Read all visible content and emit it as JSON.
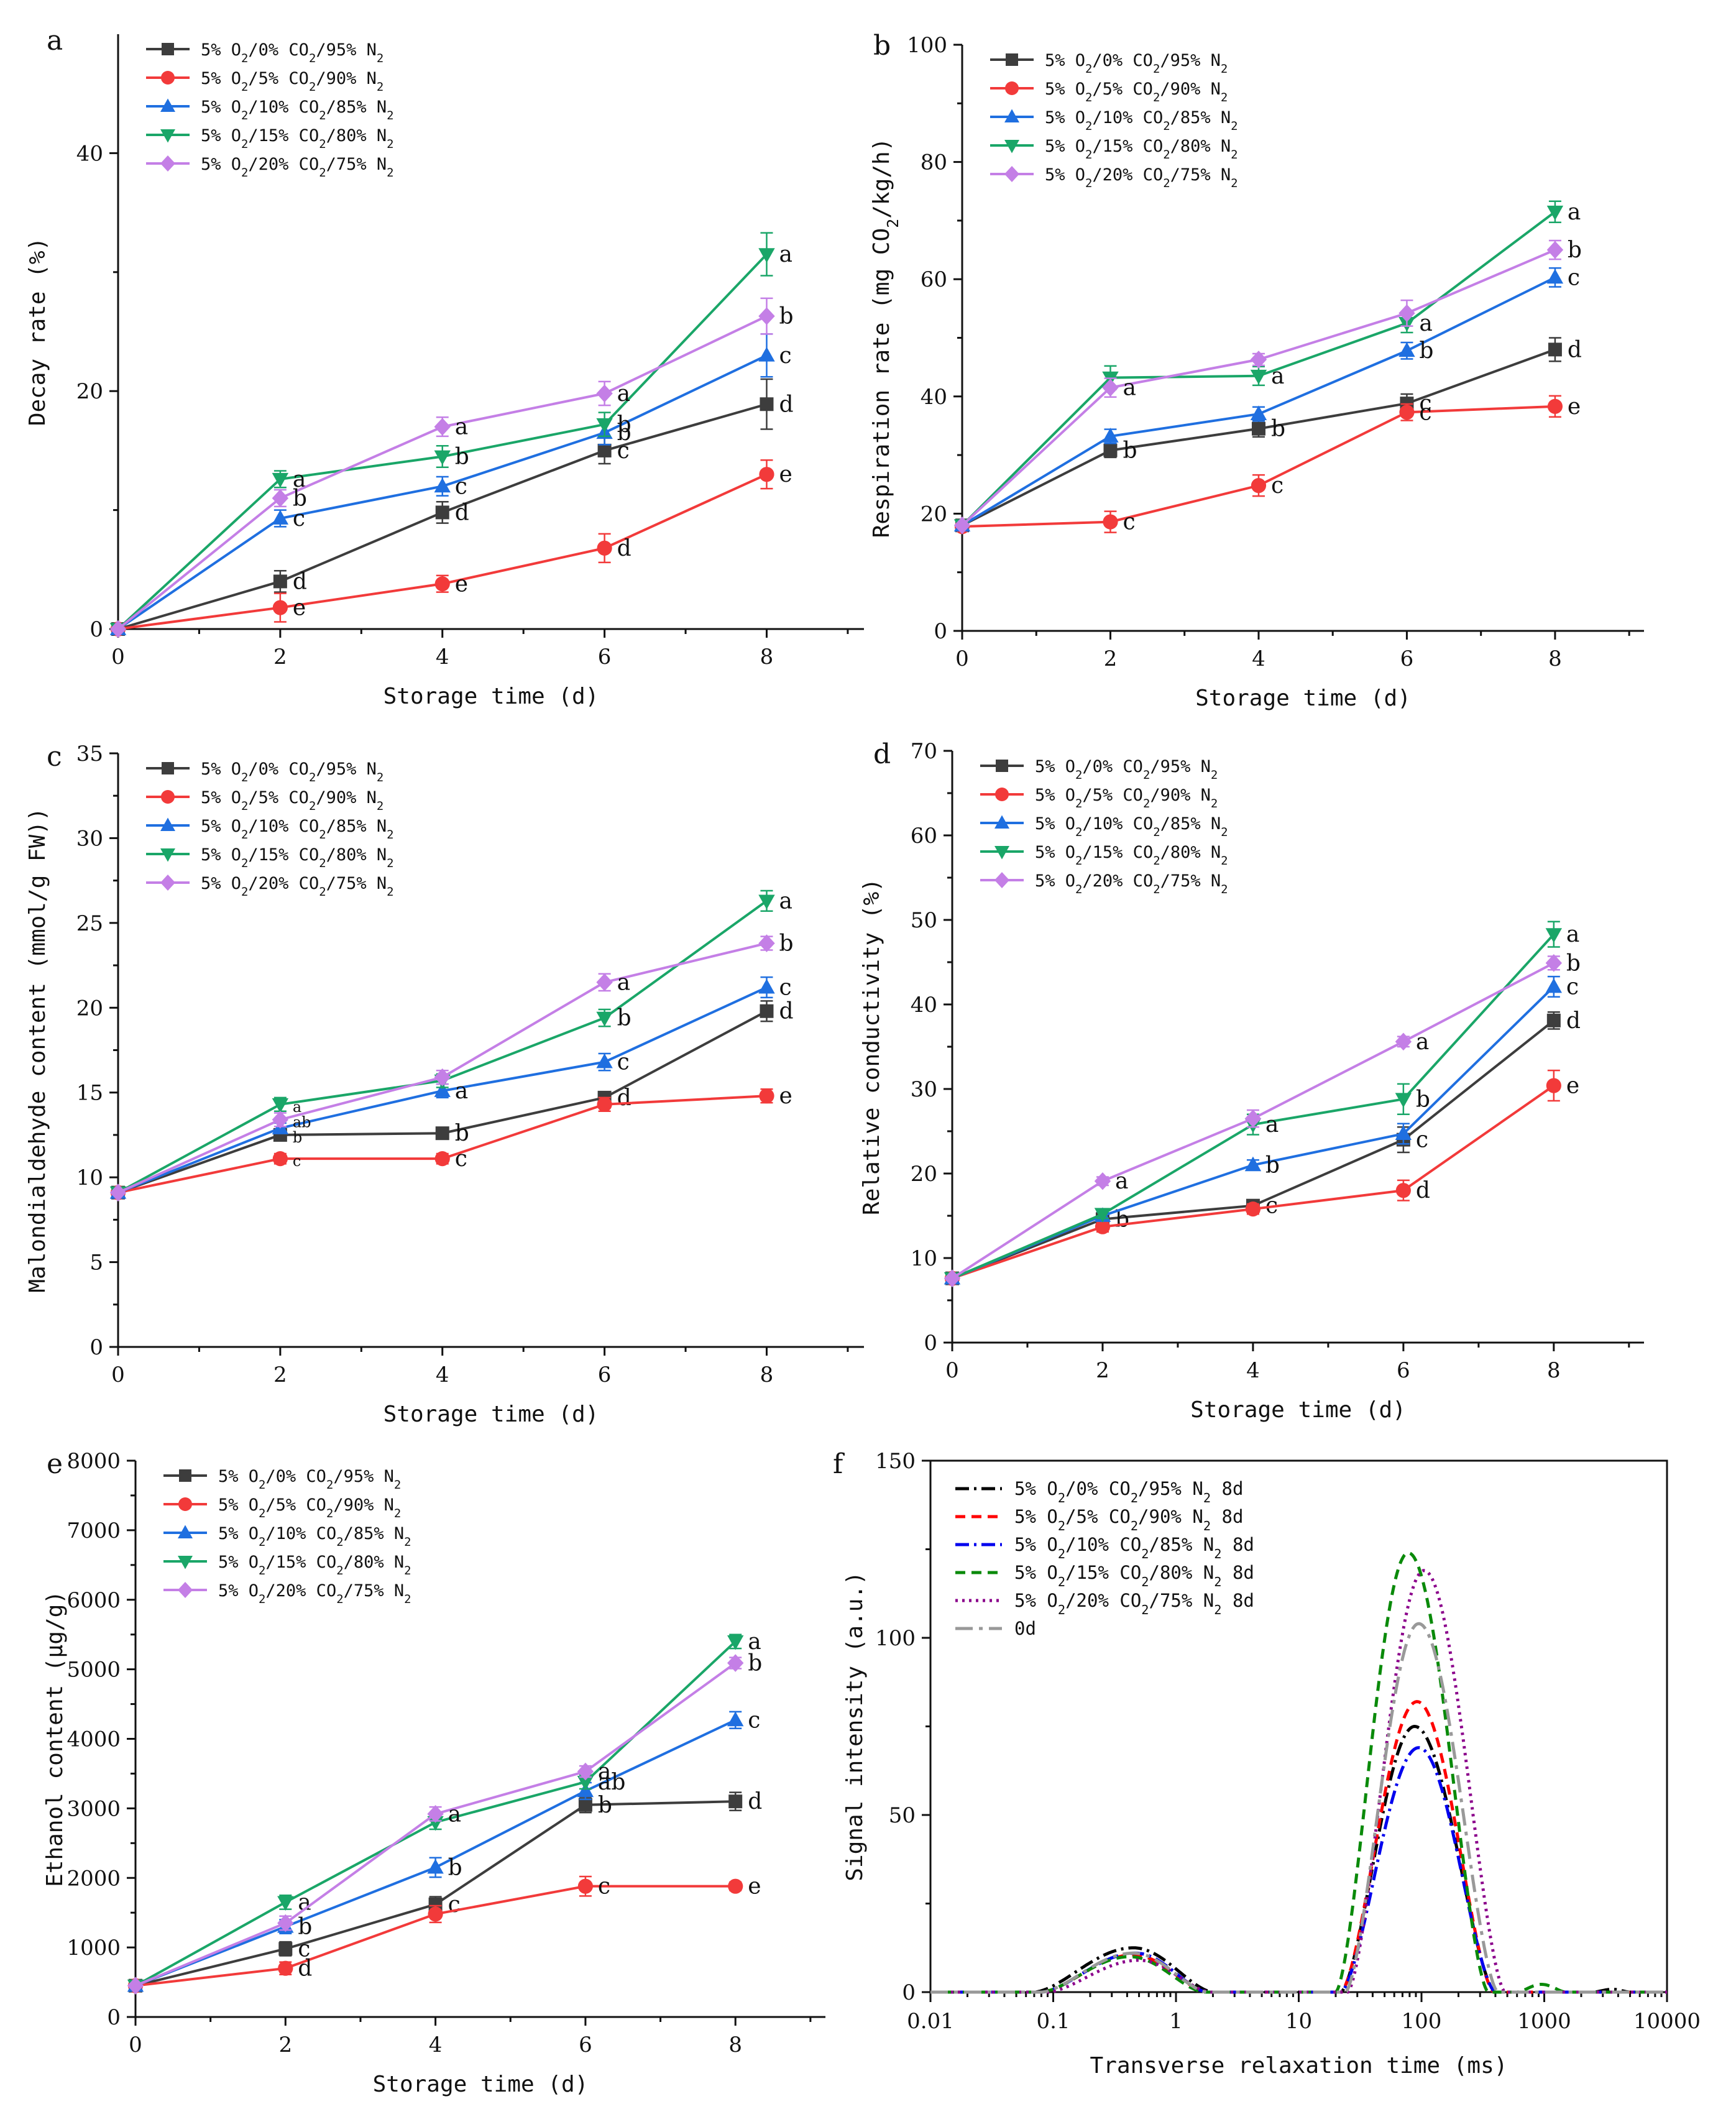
{
  "figure": {
    "panels": [
      "a",
      "b",
      "c",
      "d",
      "e",
      "f"
    ]
  },
  "colors": {
    "gray": "#3d3d3d",
    "red": "#f23a3a",
    "blue": "#1f6fe0",
    "green": "#1aa668",
    "violet": "#c47fe6",
    "f_black": "#000000",
    "f_red": "#ff0000",
    "f_blue": "#0000ee",
    "f_green": "#0a8a0a",
    "f_purple": "#8b008b",
    "f_gray": "#999999"
  },
  "chart_data": [
    {
      "id": "a",
      "type": "line",
      "xlabel": "Storage time (d)",
      "ylabel": "Decay rate (%)",
      "xlim": [
        0,
        9.2
      ],
      "ylim": [
        0,
        50
      ],
      "xticks": [
        0,
        2,
        4,
        6,
        8
      ],
      "yticks": [
        0,
        20,
        40
      ],
      "x": [
        0,
        2,
        4,
        6,
        8
      ],
      "series": [
        {
          "name": "5% O2/0% CO2/95% N2",
          "color": "gray",
          "marker": "square",
          "values": [
            0,
            4.0,
            9.8,
            15.0,
            18.9
          ],
          "err": [
            0,
            0.9,
            0.9,
            1.1,
            2.1
          ],
          "letters": [
            "",
            "d",
            "d",
            "c",
            "d"
          ]
        },
        {
          "name": "5% O2/5% CO2/90% N2",
          "color": "red",
          "marker": "circle",
          "values": [
            0,
            1.8,
            3.8,
            6.8,
            13.0
          ],
          "err": [
            0,
            1.2,
            0.7,
            1.2,
            1.2
          ],
          "letters": [
            "",
            "e",
            "e",
            "d",
            "e"
          ]
        },
        {
          "name": "5% O2/10% CO2/85% N2",
          "color": "blue",
          "marker": "triangle-up",
          "values": [
            0,
            9.3,
            12.0,
            16.5,
            23.0
          ],
          "err": [
            0,
            0.7,
            0.8,
            1.0,
            1.8
          ],
          "letters": [
            "",
            "c",
            "c",
            "b",
            "c"
          ]
        },
        {
          "name": "5% O2/15% CO2/80% N2",
          "color": "green",
          "marker": "triangle-down",
          "values": [
            0,
            12.6,
            14.5,
            17.2,
            31.5
          ],
          "err": [
            0,
            0.7,
            0.9,
            1.0,
            1.8
          ],
          "letters": [
            "",
            "a",
            "b",
            "b",
            "a"
          ]
        },
        {
          "name": "5% O2/20% CO2/75% N2",
          "color": "violet",
          "marker": "diamond",
          "values": [
            0,
            11.0,
            17.0,
            19.8,
            26.3
          ],
          "err": [
            0,
            0.7,
            0.8,
            1.0,
            1.5
          ],
          "letters": [
            "",
            "b",
            "a",
            "a",
            "b"
          ]
        }
      ]
    },
    {
      "id": "b",
      "type": "line",
      "xlabel": "Storage time (d)",
      "ylabel": "Respiration rate (mg CO2/kg/h)",
      "xlim": [
        0,
        9.2
      ],
      "ylim": [
        0,
        100
      ],
      "xticks": [
        0,
        2,
        4,
        6,
        8
      ],
      "yticks": [
        0,
        20,
        40,
        60,
        80,
        100
      ],
      "x": [
        0,
        2,
        4,
        6,
        8
      ],
      "series": [
        {
          "name": "5% O2/0% CO2/95% N2",
          "color": "gray",
          "marker": "square",
          "values": [
            18.0,
            30.8,
            34.5,
            38.8,
            48.0
          ],
          "err": [
            0,
            1.2,
            1.4,
            1.6,
            2.0
          ],
          "letters": [
            "",
            "b",
            "b",
            "c",
            "d"
          ]
        },
        {
          "name": "5% O2/5% CO2/90% N2",
          "color": "red",
          "marker": "circle",
          "values": [
            17.8,
            18.6,
            24.8,
            37.3,
            38.3
          ],
          "err": [
            0,
            1.8,
            1.8,
            1.4,
            1.8
          ],
          "letters": [
            "",
            "c",
            "c",
            "c",
            "e"
          ]
        },
        {
          "name": "5% O2/10% CO2/85% N2",
          "color": "blue",
          "marker": "triangle-up",
          "values": [
            18.0,
            33.2,
            37.0,
            47.8,
            60.3
          ],
          "err": [
            0,
            1.2,
            1.2,
            1.4,
            1.6
          ],
          "letters": [
            "",
            "",
            "",
            "b",
            "c"
          ]
        },
        {
          "name": "5% O2/15% CO2/80% N2",
          "color": "green",
          "marker": "triangle-down",
          "values": [
            18.0,
            43.2,
            43.5,
            52.5,
            71.5
          ],
          "err": [
            0,
            2.0,
            1.6,
            1.6,
            1.8
          ],
          "letters": [
            "",
            "",
            "a",
            "a",
            "a"
          ]
        },
        {
          "name": "5% O2/20% CO2/75% N2",
          "color": "violet",
          "marker": "diamond",
          "values": [
            18.0,
            41.5,
            46.3,
            54.2,
            65.0
          ],
          "err": [
            0,
            1.6,
            1.0,
            2.2,
            1.6
          ],
          "letters": [
            "",
            "a",
            "",
            "",
            "b"
          ]
        }
      ]
    },
    {
      "id": "c",
      "type": "line",
      "xlabel": "Storage time (d)",
      "ylabel": "Malondialdehyde content (mmol/g FW))",
      "xlim": [
        0,
        9.2
      ],
      "ylim": [
        0,
        35
      ],
      "xticks": [
        0,
        2,
        4,
        6,
        8
      ],
      "yticks": [
        0,
        5,
        10,
        15,
        20,
        25,
        30,
        35
      ],
      "x": [
        0,
        2,
        4,
        6,
        8
      ],
      "series": [
        {
          "name": "5% O2/0% CO2/95% N2",
          "color": "gray",
          "marker": "square",
          "values": [
            9.1,
            12.5,
            12.6,
            14.7,
            19.8
          ],
          "err": [
            0,
            0.3,
            0.3,
            0.3,
            0.6
          ],
          "letters": [
            "",
            "b",
            "b",
            "d",
            "d"
          ]
        },
        {
          "name": "5% O2/5% CO2/90% N2",
          "color": "red",
          "marker": "circle",
          "values": [
            9.1,
            11.1,
            11.1,
            14.3,
            14.8
          ],
          "err": [
            0,
            0.3,
            0.3,
            0.4,
            0.4
          ],
          "letters": [
            "",
            "c",
            "c",
            "",
            "e"
          ]
        },
        {
          "name": "5% O2/10% CO2/85% N2",
          "color": "blue",
          "marker": "triangle-up",
          "values": [
            9.1,
            12.9,
            15.1,
            16.8,
            21.2
          ],
          "err": [
            0,
            0.3,
            0.4,
            0.5,
            0.6
          ],
          "letters": [
            "",
            "",
            "a",
            "c",
            "c"
          ]
        },
        {
          "name": "5% O2/15% CO2/80% N2",
          "color": "green",
          "marker": "triangle-down",
          "values": [
            9.1,
            14.3,
            15.7,
            19.4,
            26.3
          ],
          "err": [
            0,
            0.4,
            0.4,
            0.5,
            0.6
          ],
          "letters": [
            "",
            "a",
            "",
            "b",
            "a"
          ]
        },
        {
          "name": "5% O2/20% CO2/75% N2",
          "color": "violet",
          "marker": "diamond",
          "values": [
            9.1,
            13.4,
            15.9,
            21.5,
            23.8
          ],
          "err": [
            0,
            0.4,
            0.4,
            0.5,
            0.4
          ],
          "letters": [
            "",
            "ab",
            "",
            "a",
            "b"
          ]
        }
      ]
    },
    {
      "id": "d",
      "type": "line",
      "xlabel": "Storage time (d)",
      "ylabel": "Relative conductivity (%)",
      "xlim": [
        0,
        9.2
      ],
      "ylim": [
        0,
        70
      ],
      "xticks": [
        0,
        2,
        4,
        6,
        8
      ],
      "yticks": [
        0,
        10,
        20,
        30,
        40,
        50,
        60,
        70
      ],
      "x": [
        0,
        2,
        4,
        6,
        8
      ],
      "series": [
        {
          "name": "5% O2/0% CO2/95% N2",
          "color": "gray",
          "marker": "square",
          "values": [
            7.6,
            14.6,
            16.2,
            24.0,
            38.1
          ],
          "err": [
            0,
            0.5,
            0.5,
            1.5,
            1.0
          ],
          "letters": [
            "",
            "b",
            "c",
            "c",
            "d"
          ]
        },
        {
          "name": "5% O2/5% CO2/90% N2",
          "color": "red",
          "marker": "circle",
          "values": [
            7.6,
            13.7,
            15.8,
            18.0,
            30.4
          ],
          "err": [
            0,
            0.6,
            0.6,
            1.2,
            1.8
          ],
          "letters": [
            "",
            "",
            "",
            "d",
            "e"
          ]
        },
        {
          "name": "5% O2/10% CO2/85% N2",
          "color": "blue",
          "marker": "triangle-up",
          "values": [
            7.6,
            15.0,
            21.0,
            24.7,
            42.1
          ],
          "err": [
            0,
            0.5,
            0.6,
            1.2,
            1.2
          ],
          "letters": [
            "",
            "",
            "b",
            "",
            "c"
          ]
        },
        {
          "name": "5% O2/15% CO2/80% N2",
          "color": "green",
          "marker": "triangle-down",
          "values": [
            7.6,
            15.2,
            25.8,
            28.8,
            48.3
          ],
          "err": [
            0,
            0.5,
            1.2,
            1.8,
            1.5
          ],
          "letters": [
            "",
            "",
            "a",
            "b",
            "a"
          ]
        },
        {
          "name": "5% O2/20% CO2/75% N2",
          "color": "violet",
          "marker": "diamond",
          "values": [
            7.6,
            19.1,
            26.5,
            35.6,
            44.9
          ],
          "err": [
            0,
            0.5,
            1.0,
            0.6,
            0.8
          ],
          "letters": [
            "",
            "a",
            "",
            "a",
            "b"
          ]
        }
      ]
    },
    {
      "id": "e",
      "type": "line",
      "xlabel": "Storage time (d)",
      "ylabel": "Ethanol content (μg/g)",
      "xlim": [
        0,
        9.2
      ],
      "ylim": [
        0,
        8000
      ],
      "xticks": [
        0,
        2,
        4,
        6,
        8
      ],
      "yticks": [
        0,
        1000,
        2000,
        3000,
        4000,
        5000,
        6000,
        7000,
        8000
      ],
      "x": [
        0,
        2,
        4,
        6,
        8
      ],
      "series": [
        {
          "name": "5% O2/0% CO2/95% N2",
          "color": "gray",
          "marker": "square",
          "values": [
            450,
            980,
            1620,
            3050,
            3100
          ],
          "err": [
            0,
            100,
            110,
            110,
            130
          ],
          "letters": [
            "",
            "c",
            "c",
            "b",
            "d"
          ]
        },
        {
          "name": "5% O2/5% CO2/90% N2",
          "color": "red",
          "marker": "circle",
          "values": [
            450,
            700,
            1480,
            1880,
            1880
          ],
          "err": [
            0,
            90,
            120,
            140,
            60
          ],
          "letters": [
            "",
            "d",
            "",
            "c",
            "e"
          ]
        },
        {
          "name": "5% O2/10% CO2/85% N2",
          "color": "blue",
          "marker": "triangle-up",
          "values": [
            450,
            1300,
            2150,
            3250,
            4270
          ],
          "err": [
            0,
            100,
            140,
            120,
            120
          ],
          "letters": [
            "",
            "b",
            "b",
            "",
            "c"
          ]
        },
        {
          "name": "5% O2/15% CO2/80% N2",
          "color": "green",
          "marker": "triangle-down",
          "values": [
            450,
            1650,
            2800,
            3380,
            5400
          ],
          "err": [
            0,
            100,
            100,
            100,
            100
          ],
          "letters": [
            "",
            "a",
            "",
            "ab",
            "a"
          ]
        },
        {
          "name": "5% O2/20% CO2/75% N2",
          "color": "violet",
          "marker": "diamond",
          "values": [
            450,
            1350,
            2920,
            3530,
            5090
          ],
          "err": [
            0,
            100,
            100,
            80,
            80
          ],
          "letters": [
            "",
            "",
            "a",
            "a",
            "b"
          ]
        }
      ]
    },
    {
      "id": "f",
      "type": "line",
      "xlabel": "Transverse relaxation time (ms)",
      "ylabel": "Signal intensity (a.u.)",
      "xscale": "log",
      "xlim": [
        0.01,
        10000
      ],
      "ylim": [
        0,
        150
      ],
      "xticks": [
        0.01,
        0.1,
        1,
        10,
        100,
        1000,
        10000
      ],
      "xtick_labels": [
        "0.01",
        "0.1",
        "1",
        "10",
        "100",
        "1000",
        "10000"
      ],
      "yticks": [
        0,
        50,
        100,
        150
      ],
      "series": [
        {
          "name": "5% O2/0% CO2/95% N2 8d",
          "color": "f_black",
          "dash": "dashdot",
          "peak1": {
            "center_ms": 0.45,
            "height": 12.5,
            "lo_ms": 0.07,
            "hi_ms": 2.0
          },
          "peak2": {
            "center_ms": 88,
            "height": 75,
            "lo_ms": 22,
            "hi_ms": 400
          }
        },
        {
          "name": "5% O2/5% CO2/90% N2 8d",
          "color": "f_red",
          "dash": "dash",
          "peak1": {
            "center_ms": 0.45,
            "height": 10.5,
            "lo_ms": 0.08,
            "hi_ms": 1.8
          },
          "peak2": {
            "center_ms": 92,
            "height": 82,
            "lo_ms": 22,
            "hi_ms": 390
          }
        },
        {
          "name": "5% O2/10% CO2/85% N2 8d",
          "color": "f_blue",
          "dash": "dashdot",
          "peak1": {
            "center_ms": 0.47,
            "height": 11.0,
            "lo_ms": 0.08,
            "hi_ms": 1.8
          },
          "peak2": {
            "center_ms": 95,
            "height": 69,
            "lo_ms": 22,
            "hi_ms": 400
          }
        },
        {
          "name": "5% O2/15% CO2/80% N2 8d",
          "color": "f_green",
          "dash": "dash",
          "peak1": {
            "center_ms": 0.42,
            "height": 10.0,
            "lo_ms": 0.08,
            "hi_ms": 1.7
          },
          "peak2": {
            "center_ms": 78,
            "height": 124,
            "lo_ms": 20,
            "hi_ms": 350
          }
        },
        {
          "name": "5% O2/20% CO2/75% N2 8d",
          "color": "f_purple",
          "dash": "dot",
          "peak1": {
            "center_ms": 0.5,
            "height": 9.0,
            "lo_ms": 0.09,
            "hi_ms": 1.9
          },
          "peak2": {
            "center_ms": 105,
            "height": 119,
            "lo_ms": 25,
            "hi_ms": 480
          }
        },
        {
          "name": "0d",
          "color": "f_gray",
          "dash": "longdash",
          "peak1": {
            "center_ms": 0.45,
            "height": 11.0,
            "lo_ms": 0.08,
            "hi_ms": 1.8
          },
          "peak2": {
            "center_ms": 95,
            "height": 104,
            "lo_ms": 24,
            "hi_ms": 420
          }
        }
      ]
    }
  ]
}
